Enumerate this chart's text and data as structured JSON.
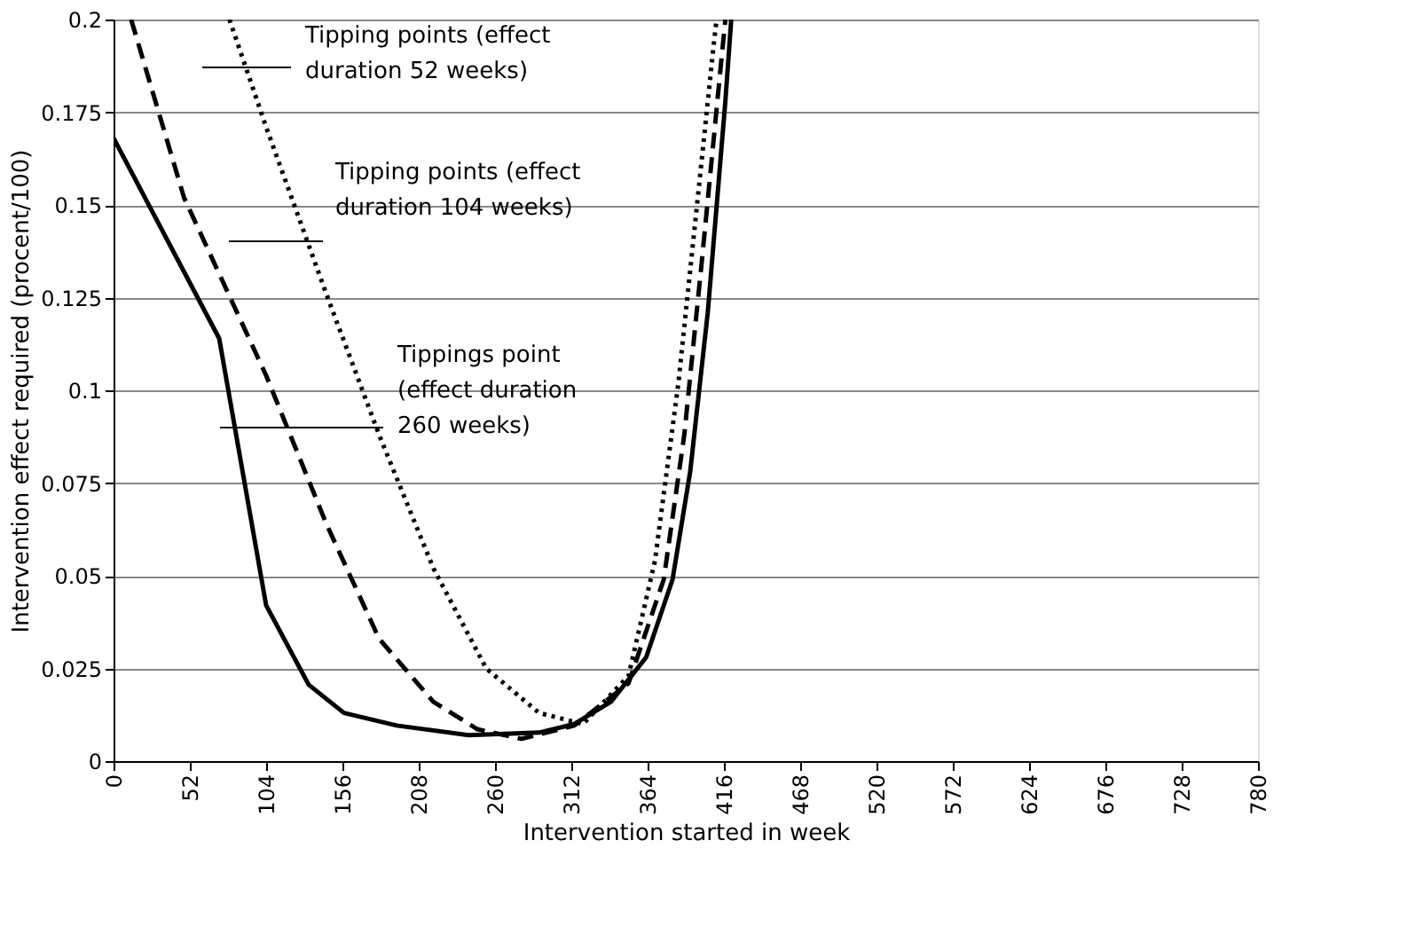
{
  "chart_data": {
    "type": "line",
    "xlabel": "Intervention started in week",
    "ylabel": "Intervention effect required (procent/100)",
    "xlim": [
      0,
      780
    ],
    "xticks": [
      0,
      52,
      104,
      156,
      208,
      260,
      312,
      364,
      416,
      468,
      520,
      572,
      624,
      676,
      728,
      780
    ],
    "ylim": [
      0,
      0.2
    ],
    "yticks": [
      0,
      0.025,
      0.05,
      0.075,
      0.1,
      0.125,
      0.15,
      0.175,
      0.2
    ],
    "grid": "y",
    "marker": "none",
    "series": [
      {
        "color": "#000000",
        "line_style": "dotted",
        "x": [
          79,
          104,
          145,
          181,
          218,
          254,
          290,
          320,
          351,
          369,
          385,
          399,
          409,
          411
        ],
        "values": [
          0.2,
          0.171,
          0.126,
          0.088,
          0.052,
          0.025,
          0.013,
          0.01,
          0.023,
          0.054,
          0.102,
          0.155,
          0.193,
          0.2
        ]
      },
      {
        "color": "#000000",
        "line_style": "dashed",
        "x": [
          12,
          48,
          104,
          145,
          181,
          218,
          248,
          278,
          314,
          351,
          375,
          389,
          401,
          414,
          417
        ],
        "values": [
          0.2,
          0.152,
          0.104,
          0.064,
          0.033,
          0.016,
          0.0086,
          0.006,
          0.0096,
          0.021,
          0.049,
          0.088,
          0.135,
          0.188,
          0.2
        ]
      },
      {
        "color": "#000000",
        "line_style": "solid",
        "x": [
          0,
          72,
          104,
          133,
          157,
          193,
          242,
          290,
          314,
          339,
          363,
          381,
          393,
          405,
          417,
          421
        ],
        "values": [
          0.168,
          0.114,
          0.042,
          0.0206,
          0.013,
          0.0096,
          0.007,
          0.0077,
          0.01,
          0.016,
          0.028,
          0.049,
          0.078,
          0.121,
          0.178,
          0.2
        ]
      }
    ],
    "annotations": [
      "Tipping points (effect duration 52 weeks)",
      "Tipping points (effect duration 104 weeks)",
      "Tippings point (effect duration 260 weeks)"
    ]
  }
}
